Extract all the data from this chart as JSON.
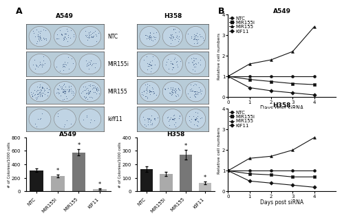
{
  "bar_A549": {
    "title": "A549",
    "categories": [
      "NTC",
      "MIR155i",
      "MIR155",
      "KIF11"
    ],
    "values": [
      310,
      225,
      575,
      30
    ],
    "errors": [
      25,
      20,
      45,
      10
    ],
    "colors": [
      "#1a1a1a",
      "#aaaaaa",
      "#777777",
      "#bbbbbb"
    ],
    "ylabel": "# of Colonies/1000 cells",
    "ylim": [
      0,
      800
    ],
    "yticks": [
      0,
      200,
      400,
      600,
      800
    ],
    "stars": [
      false,
      true,
      true,
      true
    ]
  },
  "bar_H358": {
    "title": "H358",
    "categories": [
      "NTC",
      "MIR155i",
      "MIR155",
      "KIF11"
    ],
    "values": [
      165,
      130,
      270,
      65
    ],
    "errors": [
      20,
      15,
      35,
      10
    ],
    "colors": [
      "#1a1a1a",
      "#aaaaaa",
      "#777777",
      "#bbbbbb"
    ],
    "ylabel": "# of Colonies/1000 cells",
    "ylim": [
      0,
      400
    ],
    "yticks": [
      0,
      100,
      200,
      300,
      400
    ],
    "stars": [
      false,
      false,
      true,
      true
    ]
  },
  "line_A549": {
    "title": "A549",
    "xlabel": "Days post siRNA",
    "ylabel": "Relative cell numbers",
    "xlim": [
      0,
      5
    ],
    "ylim": [
      0,
      4
    ],
    "yticks": [
      0,
      1,
      2,
      3,
      4
    ],
    "xticks": [
      0,
      1,
      2,
      3,
      4
    ],
    "days": [
      0,
      1,
      2,
      3,
      4
    ],
    "series": {
      "NTC": [
        1.0,
        1.0,
        1.0,
        1.0,
        1.0
      ],
      "MIR155i": [
        1.0,
        0.85,
        0.75,
        0.65,
        0.6
      ],
      "MIR155": [
        1.0,
        1.6,
        1.8,
        2.2,
        3.4
      ],
      "KIF11": [
        1.0,
        0.45,
        0.3,
        0.2,
        0.1
      ]
    },
    "markers": {
      "NTC": "o",
      "MIR155i": "s",
      "MIR155": "^",
      "KIF11": "D"
    }
  },
  "line_H358": {
    "title": "H358",
    "xlabel": "Days post siRNA",
    "ylabel": "Relative cell numbers",
    "xlim": [
      0,
      5
    ],
    "ylim": [
      0,
      4
    ],
    "yticks": [
      0,
      1,
      2,
      3,
      4
    ],
    "xticks": [
      0,
      1,
      2,
      3,
      4
    ],
    "days": [
      0,
      1,
      2,
      3,
      4
    ],
    "series": {
      "NTC": [
        1.0,
        1.0,
        1.0,
        1.0,
        1.0
      ],
      "MIR155i": [
        1.0,
        0.85,
        0.8,
        0.7,
        0.7
      ],
      "MIR155": [
        1.0,
        1.6,
        1.7,
        2.0,
        2.6
      ],
      "KIF11": [
        1.0,
        0.5,
        0.4,
        0.3,
        0.2
      ]
    },
    "markers": {
      "NTC": "o",
      "MIR155i": "s",
      "MIR155": "^",
      "KIF11": "D"
    }
  },
  "row_labels": [
    "NTC",
    "MIR155i",
    "MIR155",
    "kiff11"
  ],
  "col_titles_left": "A549",
  "col_titles_right": "H358",
  "img_bg": "#b8cfe0",
  "img_well_light": "#d8e8f0",
  "img_well_dark": "#6080a0",
  "background_color": "#ffffff",
  "font_size_title": 6.5,
  "font_size_label": 5.5,
  "font_size_tick": 5,
  "font_size_legend": 5,
  "font_size_panel": 9,
  "font_size_rowlabel": 5.5
}
